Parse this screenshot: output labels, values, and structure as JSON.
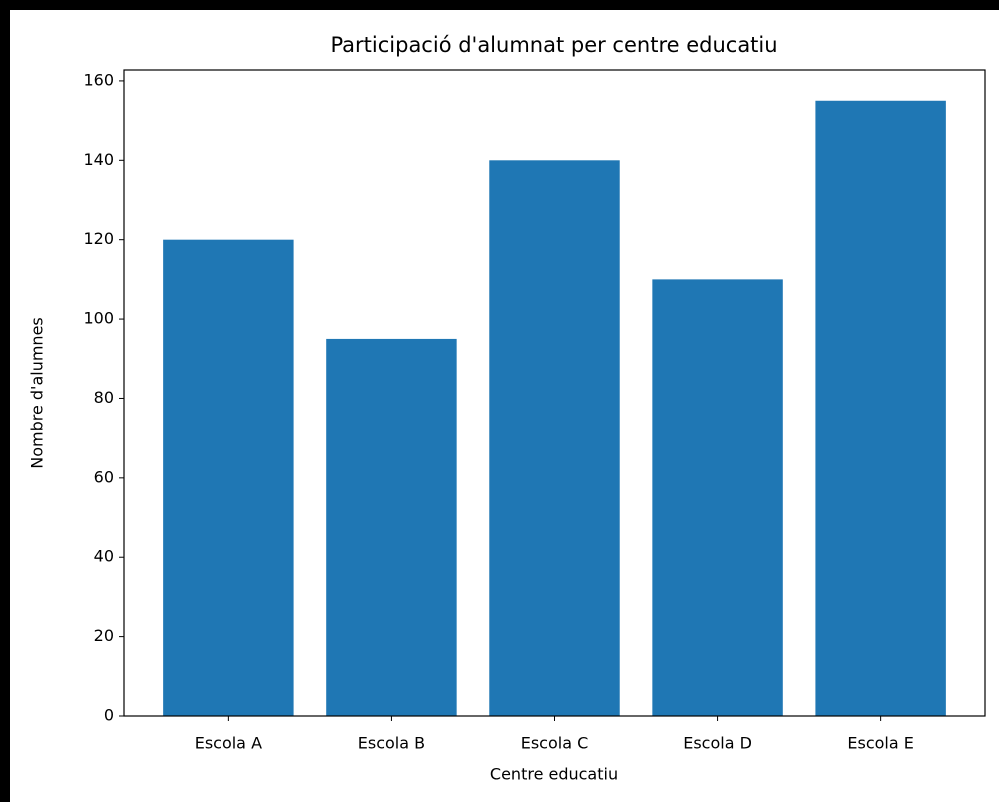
{
  "chart_data": {
    "type": "bar",
    "title": "Participació d'alumnat per centre educatiu",
    "xlabel": "Centre educatiu",
    "ylabel": "Nombre d'alumnes",
    "categories": [
      "Escola A",
      "Escola B",
      "Escola C",
      "Escola D",
      "Escola E"
    ],
    "values": [
      120,
      95,
      140,
      110,
      155
    ],
    "color": "#1f77b4",
    "ylim": [
      0,
      162.75
    ],
    "yticks": [
      0,
      20,
      40,
      60,
      80,
      100,
      120,
      140,
      160
    ],
    "grid": false
  }
}
